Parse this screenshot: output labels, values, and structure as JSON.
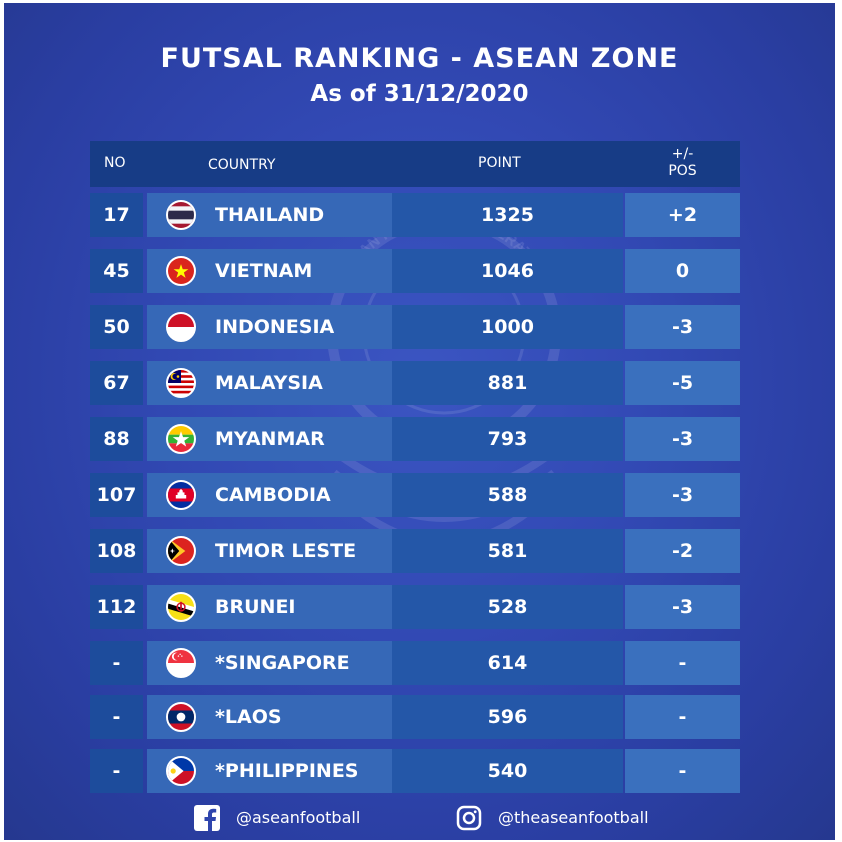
{
  "title": "FUTSAL RANKING - ASEAN ZONE",
  "subtitle": "As of 31/12/2020",
  "columns": {
    "no": "NO",
    "country": "COUNTRY",
    "point": "POINT",
    "pos_line1": "+/-",
    "pos_line2": "POS"
  },
  "rows": [
    {
      "no": "17",
      "country": "THAILAND",
      "point": "1325",
      "pos": "+2",
      "flag": "thailand-flag-icon"
    },
    {
      "no": "45",
      "country": "VIETNAM",
      "point": "1046",
      "pos": "0",
      "flag": "vietnam-flag-icon"
    },
    {
      "no": "50",
      "country": "INDONESIA",
      "point": "1000",
      "pos": "-3",
      "flag": "indonesia-flag-icon"
    },
    {
      "no": "67",
      "country": "MALAYSIA",
      "point": "881",
      "pos": "-5",
      "flag": "malaysia-flag-icon"
    },
    {
      "no": "88",
      "country": "MYANMAR",
      "point": "793",
      "pos": "-3",
      "flag": "myanmar-flag-icon"
    },
    {
      "no": "107",
      "country": "CAMBODIA",
      "point": "588",
      "pos": "-3",
      "flag": "cambodia-flag-icon"
    },
    {
      "no": "108",
      "country": "TIMOR LESTE",
      "point": "581",
      "pos": "-2",
      "flag": "timor-leste-flag-icon"
    },
    {
      "no": "112",
      "country": "BRUNEI",
      "point": "528",
      "pos": "-3",
      "flag": "brunei-flag-icon"
    },
    {
      "no": "-",
      "country": "*SINGAPORE",
      "point": "614",
      "pos": "-",
      "flag": "singapore-flag-icon"
    },
    {
      "no": "-",
      "country": "*LAOS",
      "point": "596",
      "pos": "-",
      "flag": "laos-flag-icon"
    },
    {
      "no": "-",
      "country": "*PHILIPPINES",
      "point": "540",
      "pos": "-",
      "flag": "philippines-flag-icon"
    }
  ],
  "footer": {
    "facebook": "@aseanfootball",
    "instagram": "@theaseanfootball"
  },
  "watermark": "ASEAN FOOTBALL FEDERATION",
  "colors": {
    "background": "#2f45ad",
    "header": "#173c86",
    "country_cell": "#3668b7",
    "point_cell": "#2457a8",
    "pos_cell": "#3a70be",
    "text": "#ffffff"
  }
}
